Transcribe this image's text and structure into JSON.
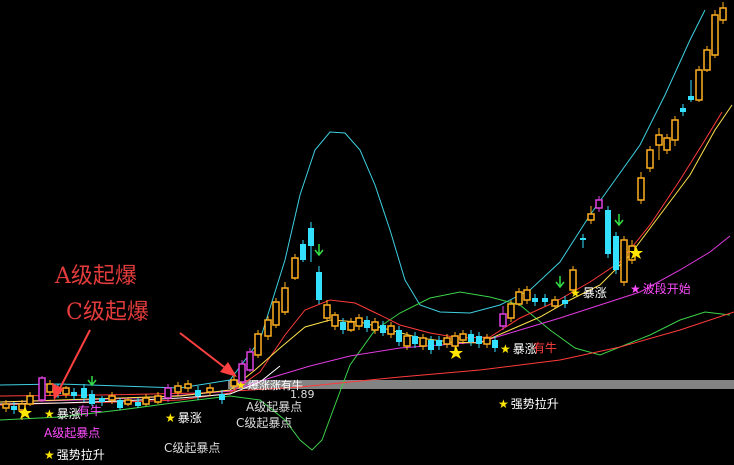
{
  "annotations": {
    "a_level_big": "A级起爆",
    "c_level_big": "C级起爆",
    "baozhang_1": "暴涨",
    "baozhang_2": "暴涨",
    "baozhang_3": "暴涨",
    "baozhang_4": "暴涨",
    "a_start_point_left": "A级起暴点",
    "a_start_point_mid": "A级起暴点",
    "c_start_point_left": "C级起暴点",
    "c_start_point_mid": "C级起暴点",
    "qiangshi_left": "强势拉升",
    "qiangshi_right": "强势拉升",
    "boduan": "波段开始",
    "youniu": "有牛",
    "youniu_2": "有牛",
    "baozhang_overlap": "爆涨涨有牛",
    "number_overlap": "1.89"
  },
  "colors": {
    "background": "#000000",
    "up_candle": "#ffb020",
    "down_candle": "#33e0ff",
    "ma_white": "#ffffff",
    "ma_yellow": "#ffe34d",
    "ma_red": "#ff3b3b",
    "ma_magenta": "#e23be2",
    "boll_cyan": "#3ecfe0",
    "green_line": "#3cd24a"
  },
  "icons": [
    "star-icon",
    "down-arrow-icon",
    "red-arrow-icon"
  ]
}
